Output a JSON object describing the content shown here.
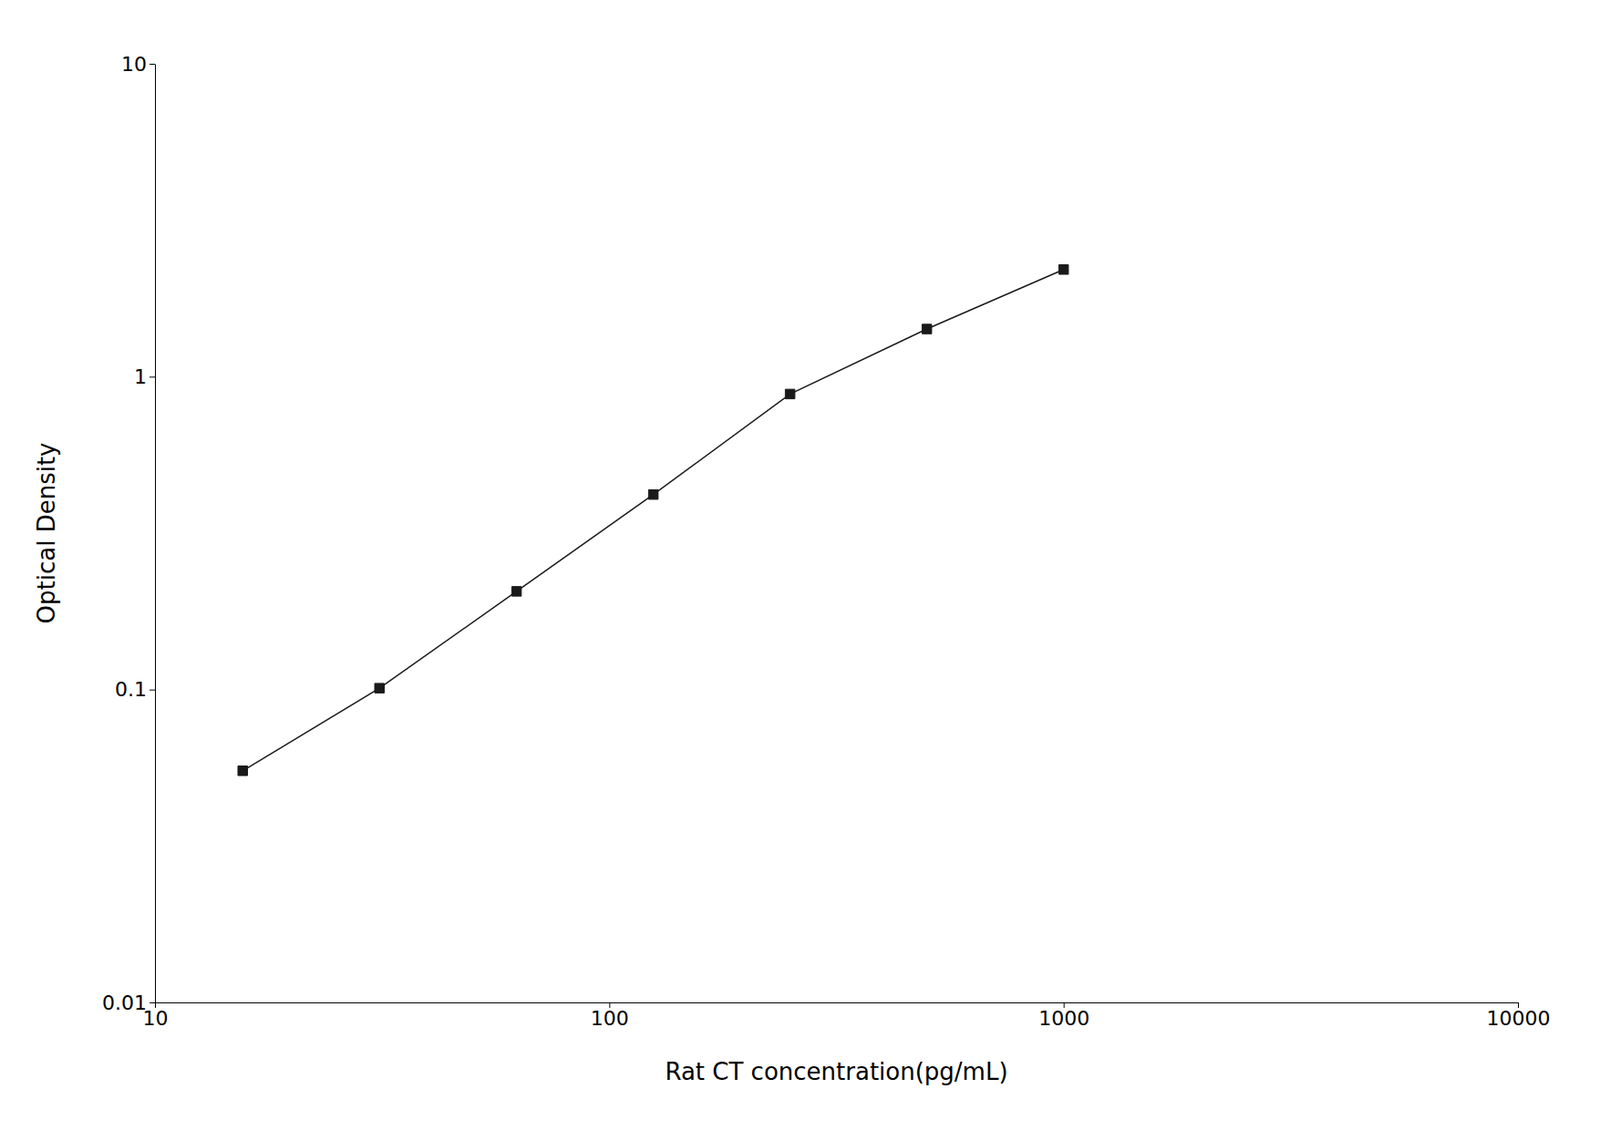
{
  "chart_data": {
    "type": "line",
    "x": [
      15.6,
      31.2,
      62.5,
      125,
      250,
      500,
      1000
    ],
    "values": [
      0.055,
      0.101,
      0.206,
      0.42,
      0.88,
      1.42,
      2.2
    ],
    "xlabel": "Rat CT concentration(pg/mL)",
    "ylabel": "Optical Density",
    "xlim": [
      10,
      10000
    ],
    "ylim": [
      0.01,
      10
    ],
    "xticks": [
      10,
      100,
      1000,
      10000
    ],
    "yticks": [
      0.01,
      0.1,
      1,
      10
    ],
    "log": true,
    "grid": false,
    "color": "#1a1a1a",
    "marker": "square"
  }
}
